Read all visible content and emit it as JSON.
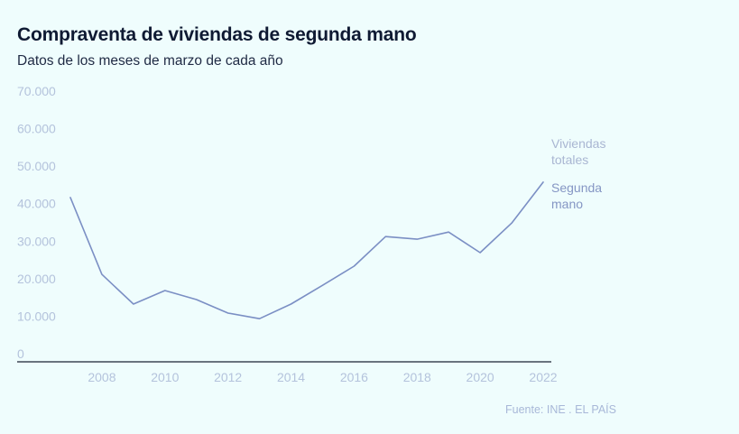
{
  "header": {
    "title": "Compraventa de viviendas de segunda mano",
    "subtitle": "Datos de los meses de marzo de cada año"
  },
  "footer": {
    "source": "Fuente: INE . EL PAÍS"
  },
  "colors": {
    "background": "#effdfd",
    "title": "#0f1a33",
    "series_segunda_mano": "#7b8fc4",
    "legend_totales": "#a9b6d2",
    "legend_segunda_mano": "#8596c4",
    "axis_line": "#1a2233",
    "tick_label": "#b4c3dc"
  },
  "chart_data": {
    "type": "line",
    "title": "Compraventa de viviendas de segunda mano",
    "subtitle": "Datos de los meses de marzo de cada año",
    "xlabel": "",
    "ylabel": "",
    "x": [
      2007,
      2008,
      2009,
      2010,
      2011,
      2012,
      2013,
      2014,
      2015,
      2016,
      2017,
      2018,
      2019,
      2020,
      2021,
      2022
    ],
    "x_ticks": [
      "2008",
      "2010",
      "2012",
      "2014",
      "2016",
      "2018",
      "2020",
      "2022"
    ],
    "x_tick_values": [
      2008,
      2010,
      2012,
      2014,
      2016,
      2018,
      2020,
      2022
    ],
    "xlim": [
      2007,
      2022
    ],
    "y_ticks": [
      "0",
      "10.000",
      "20.000",
      "30.000",
      "40.000",
      "50.000",
      "60.000",
      "70.000"
    ],
    "y_tick_values": [
      0,
      10000,
      20000,
      30000,
      40000,
      50000,
      60000,
      70000
    ],
    "ylim": [
      0,
      70000
    ],
    "grid": false,
    "legend": [
      {
        "label_lines": [
          "Viviendas",
          "totales"
        ],
        "series": "Viviendas totales"
      },
      {
        "label_lines": [
          "Segunda",
          "mano"
        ],
        "series": "Segunda mano"
      }
    ],
    "legend_placement": "right-end-of-lines",
    "series": [
      {
        "name": "Segunda mano",
        "values": [
          43800,
          23300,
          15400,
          19000,
          16600,
          13000,
          11500,
          15400,
          20400,
          25500,
          33400,
          32700,
          34600,
          29100,
          37000,
          47900
        ]
      }
    ],
    "source": "Fuente: INE . EL PAÍS"
  }
}
